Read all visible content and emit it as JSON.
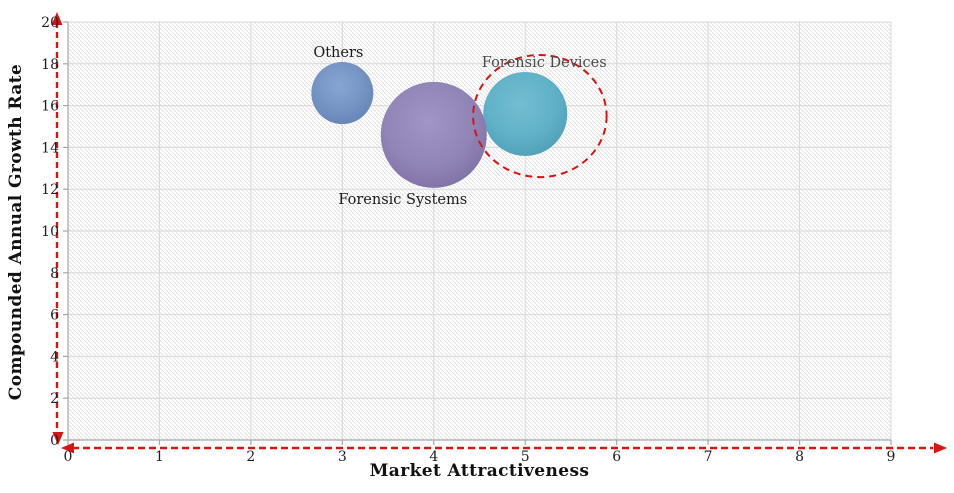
{
  "colors": {
    "background": "#ffffff",
    "grid": "#d9d9d9",
    "axis": "#a6a6a6",
    "tick_label": "#1f1f1f",
    "hatch_line": "#e2e2e2",
    "red": "#d81512"
  },
  "chart_data": {
    "type": "bubble",
    "title": "",
    "xlabel": "Market Attractiveness",
    "ylabel": "Compounded Annual Growth Rate",
    "xlim": [
      0,
      9
    ],
    "ylim": [
      0,
      20
    ],
    "xticks": [
      0,
      1,
      2,
      3,
      4,
      5,
      6,
      7,
      8,
      9
    ],
    "yticks": [
      0,
      2,
      4,
      6,
      8,
      10,
      12,
      14,
      16,
      18,
      20
    ],
    "grid": true,
    "plot_background": "hatched",
    "legend": "none",
    "series": [
      {
        "name": "Others",
        "x": 3,
        "y": 16.6,
        "r": 31,
        "color_light": "#87a6d2",
        "color": "#7493c4",
        "color_edge": "#6080b3",
        "label_pos": "above",
        "label_dx": -4,
        "label_color": "#1b1b1b"
      },
      {
        "name": "Forensic Devices",
        "x": 5,
        "y": 15.6,
        "r": 42,
        "color_light": "#74bdd1",
        "color": "#60b1c7",
        "color_edge": "#4898b2",
        "label_pos": "above",
        "label_dx": 19,
        "label_color": "#4a4a4a"
      },
      {
        "name": "Forensic Systems",
        "x": 4,
        "y": 14.6,
        "r": 53,
        "color_light": "#a095c5",
        "color": "#9184b6",
        "color_edge": "#7b6a9e",
        "label_pos": "below",
        "label_dx": -31,
        "label_color": "#1b1b1b"
      }
    ],
    "annotations": [
      {
        "type": "ellipse",
        "target": "Forensic Devices",
        "x": 5.16,
        "y": 15.5,
        "rx": 0.73,
        "ry": 2.92,
        "stroke": "#d81512",
        "dashed": true
      }
    ],
    "axis_arrows": {
      "style": "dashed",
      "color": "#d81512",
      "x_axis_double_headed": true,
      "y_axis_double_headed": true
    }
  }
}
